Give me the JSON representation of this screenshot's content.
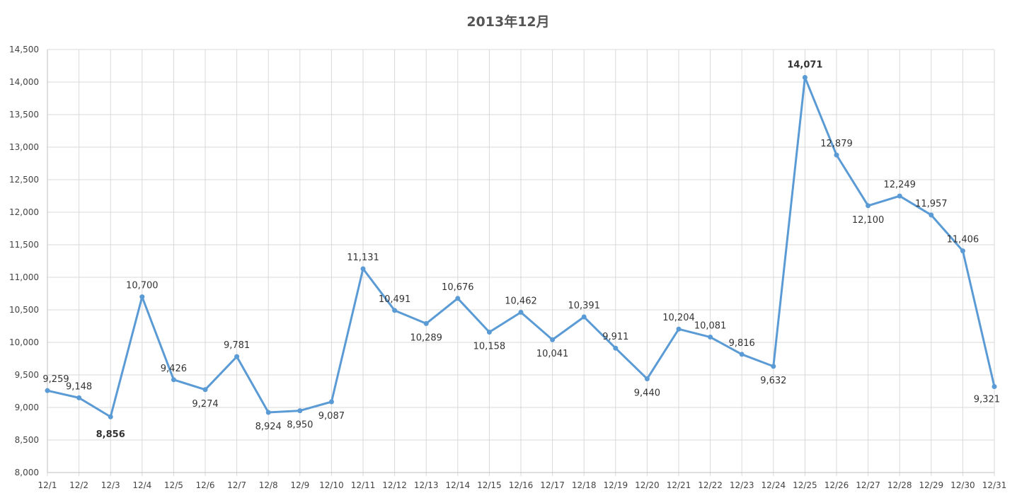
{
  "chart_data": {
    "type": "line",
    "title": "2013年12月",
    "xlabel": "",
    "ylabel": "",
    "ylim": [
      8000,
      14500
    ],
    "yticks": [
      8000,
      8500,
      9000,
      9500,
      10000,
      10500,
      11000,
      11500,
      12000,
      12500,
      13000,
      13500,
      14000,
      14500
    ],
    "ytick_labels": [
      "8,000",
      "8,500",
      "9,000",
      "9,500",
      "10,000",
      "10,500",
      "11,000",
      "11,500",
      "12,000",
      "12,500",
      "13,000",
      "13,500",
      "14,000",
      "14,500"
    ],
    "grid": true,
    "legend": "none",
    "categories": [
      "12/1",
      "12/2",
      "12/3",
      "12/4",
      "12/5",
      "12/6",
      "12/7",
      "12/8",
      "12/9",
      "12/10",
      "12/11",
      "12/12",
      "12/13",
      "12/14",
      "12/15",
      "12/16",
      "12/17",
      "12/18",
      "12/19",
      "12/20",
      "12/21",
      "12/22",
      "12/23",
      "12/24",
      "12/25",
      "12/26",
      "12/27",
      "12/28",
      "12/29",
      "12/30",
      "12/31"
    ],
    "series": [
      {
        "color": "#5b9bd5",
        "values": [
          9259,
          9148,
          8856,
          10700,
          9426,
          9274,
          9781,
          8924,
          8950,
          9087,
          11131,
          10491,
          10289,
          10676,
          10158,
          10462,
          10041,
          10391,
          9911,
          9440,
          10204,
          10081,
          9816,
          9632,
          14071,
          12879,
          12100,
          12249,
          11957,
          11406,
          9321
        ],
        "labels": [
          "9,259",
          "9,148",
          "8,856",
          "10,700",
          "9,426",
          "9,274",
          "9,781",
          "8,924",
          "8,950",
          "9,087",
          "11,131",
          "10,491",
          "10,289",
          "10,676",
          "10,158",
          "10,462",
          "10,041",
          "10,391",
          "9,911",
          "9,440",
          "10,204",
          "10,081",
          "9,816",
          "9,632",
          "14,071",
          "12,879",
          "12,100",
          "12,249",
          "11,957",
          "11,406",
          "9,321"
        ]
      }
    ],
    "highlights": {
      "max": {
        "category": "12/25",
        "value": 14071,
        "color": "#c00000"
      },
      "min": {
        "category": "12/3",
        "value": 8856,
        "color": "#7030a0"
      }
    },
    "colors": {
      "grid": "#d9d9d9",
      "axis": "#bfbfbf",
      "text": "#444444",
      "title": "#555555"
    }
  }
}
